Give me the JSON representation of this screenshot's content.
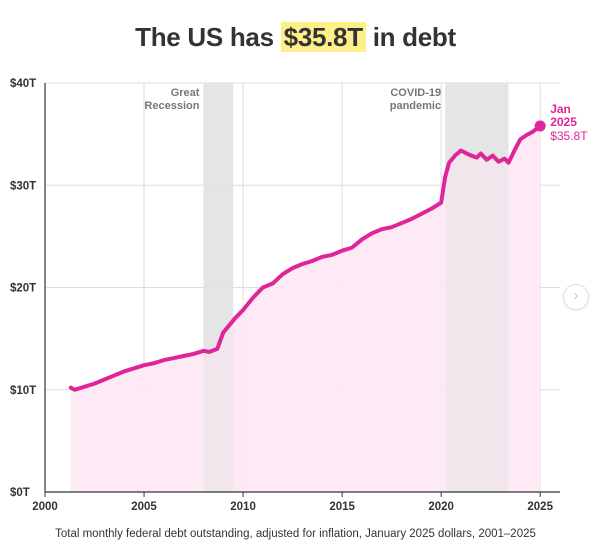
{
  "title": {
    "before": "The US has ",
    "highlight": "$35.8T",
    "after": " in debt"
  },
  "caption": "Total monthly federal debt outstanding, adjusted for inflation, January 2025 dollars, 2001–2025",
  "colors": {
    "line": "#e0249a",
    "area": "#fde8f4",
    "shade": "#e3e3e3",
    "grid": "#dddddd",
    "axis": "#333333",
    "text": "#333333",
    "highlight": "#fdf08a"
  },
  "next_button": {
    "icon": "chevron-right-icon",
    "glyph": "›"
  },
  "chart_data": {
    "type": "area",
    "xlim": [
      2000,
      2026
    ],
    "ylim": [
      0,
      40
    ],
    "x_ticks": [
      2000,
      2005,
      2010,
      2015,
      2020,
      2025
    ],
    "x_tick_labels": [
      "2000",
      "2005",
      "2010",
      "2015",
      "2020",
      "2025"
    ],
    "y_ticks": [
      0,
      10,
      20,
      30,
      40
    ],
    "y_tick_labels": [
      "$0T",
      "$10T",
      "$20T",
      "$30T",
      "$40T"
    ],
    "grid": true,
    "shaded_periods": [
      {
        "label_lines": [
          "Great",
          "Recession"
        ],
        "start": 2008.0,
        "end": 2009.5
      },
      {
        "label_lines": [
          "COVID-19",
          "pandemic"
        ],
        "start": 2020.2,
        "end": 2023.4
      }
    ],
    "end_label": {
      "lines": [
        "Jan",
        "2025"
      ],
      "value": "$35.8T"
    },
    "series": [
      {
        "x": [
          2001.3,
          2001.5,
          2002.0,
          2002.5,
          2003.0,
          2003.5,
          2004.0,
          2004.5,
          2005.0,
          2005.5,
          2006.0,
          2006.5,
          2007.0,
          2007.5,
          2008.0,
          2008.3,
          2008.7,
          2009.0,
          2009.3,
          2009.6,
          2010.0,
          2010.5,
          2011.0,
          2011.5,
          2012.0,
          2012.5,
          2013.0,
          2013.5,
          2014.0,
          2014.5,
          2015.0,
          2015.5,
          2016.0,
          2016.5,
          2017.0,
          2017.5,
          2018.0,
          2018.5,
          2019.0,
          2019.5,
          2020.0,
          2020.2,
          2020.4,
          2020.7,
          2021.0,
          2021.4,
          2021.8,
          2022.0,
          2022.3,
          2022.6,
          2022.9,
          2023.2,
          2023.4,
          2023.7,
          2024.0,
          2024.3,
          2024.6,
          2025.0
        ],
        "y": [
          10.2,
          10.0,
          10.3,
          10.6,
          11.0,
          11.4,
          11.8,
          12.1,
          12.4,
          12.6,
          12.9,
          13.1,
          13.3,
          13.5,
          13.8,
          13.7,
          14.0,
          15.6,
          16.3,
          17.0,
          17.8,
          19.0,
          20.0,
          20.4,
          21.3,
          21.9,
          22.3,
          22.6,
          23.0,
          23.2,
          23.6,
          23.9,
          24.7,
          25.3,
          25.7,
          25.9,
          26.3,
          26.7,
          27.2,
          27.7,
          28.3,
          30.8,
          32.2,
          32.9,
          33.4,
          33.0,
          32.7,
          33.1,
          32.5,
          32.9,
          32.3,
          32.6,
          32.2,
          33.4,
          34.5,
          34.9,
          35.2,
          35.8
        ]
      }
    ]
  }
}
